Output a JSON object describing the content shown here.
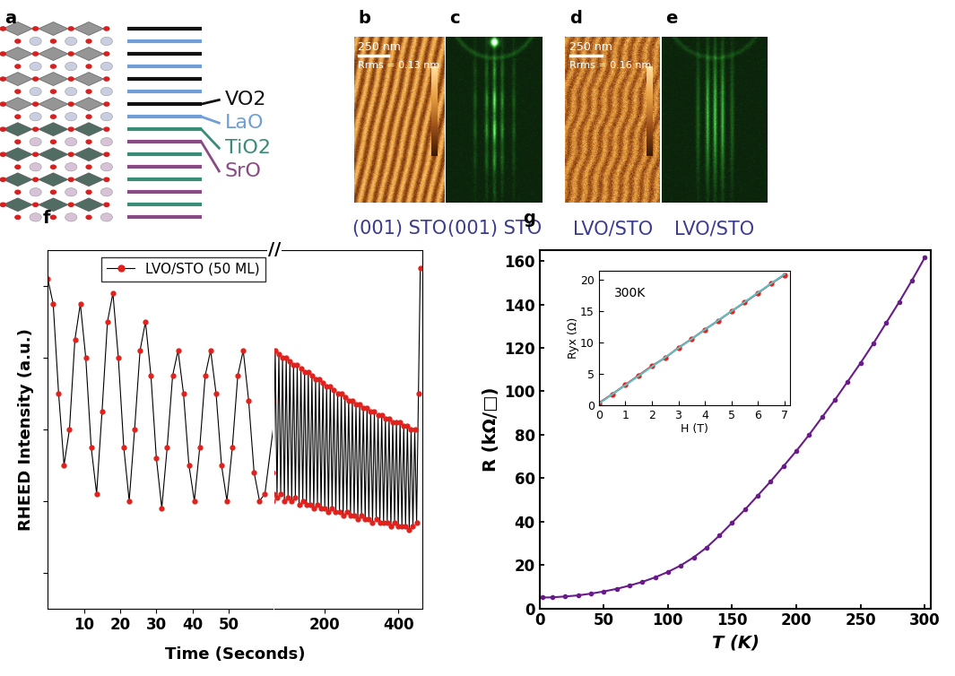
{
  "diagram": {
    "panels": [
      {
        "label": "a",
        "layers": [
          {
            "name": "VO2",
            "color": "#111111"
          },
          {
            "name": "LaO",
            "color": "#6f9fd6"
          },
          {
            "name": "TiO2",
            "color": "#3a8c78"
          },
          {
            "name": "SrO",
            "color": "#8a4a84"
          }
        ]
      },
      {
        "label": "b",
        "type": "afm",
        "scale_bar": "250 nm",
        "roughness": "Rrms = 0.13 nm",
        "caption": "(001) STO"
      },
      {
        "label": "c",
        "type": "rheed",
        "caption": "(001) STO"
      },
      {
        "label": "d",
        "type": "afm",
        "scale_bar": "250 nm",
        "roughness": "Rrms = 0.16 nm",
        "caption": "LVO/STO"
      },
      {
        "label": "e",
        "type": "rheed",
        "caption": "LVO/STO"
      }
    ]
  },
  "chart_data": [
    {
      "label": "f",
      "type": "line",
      "xlabel": "Time (Seconds)",
      "ylabel": "RHEED Intensity (a.u.)",
      "break_label": "//",
      "legend": "upper right",
      "tick_labels": "x",
      "ylim": [
        0,
        1
      ],
      "yticks": [
        0.1,
        0.3,
        0.5,
        0.7,
        0.9
      ],
      "axes": [
        {
          "xlim": [
            0,
            62
          ],
          "xticks": [
            10,
            20,
            30,
            40,
            50
          ]
        },
        {
          "xlim": [
            62,
            465
          ],
          "xticks": [
            200,
            400
          ]
        }
      ],
      "series": [
        {
          "name": "LVO/STO (50 ML)",
          "color": "#e3201b",
          "marker": "o",
          "line_style": "solid",
          "x": [
            0,
            1.5,
            3,
            4.5,
            6,
            7.5,
            9,
            10.5,
            12,
            13.5,
            15,
            16.5,
            18,
            19.5,
            21,
            22.5,
            24,
            25.5,
            27,
            28.5,
            30,
            31.5,
            33,
            34.5,
            36,
            37.5,
            39,
            40.5,
            42,
            43.5,
            45,
            46.5,
            48,
            49.5,
            51,
            52.5,
            54,
            55.5,
            57,
            58.5,
            60,
            65,
            70,
            75,
            80,
            85,
            90,
            95,
            100,
            105,
            110,
            115,
            120,
            125,
            130,
            135,
            140,
            145,
            150,
            155,
            160,
            165,
            170,
            175,
            180,
            185,
            190,
            195,
            200,
            205,
            210,
            215,
            220,
            225,
            230,
            235,
            240,
            245,
            250,
            255,
            260,
            265,
            270,
            275,
            280,
            285,
            290,
            295,
            300,
            305,
            310,
            315,
            320,
            325,
            330,
            335,
            340,
            345,
            350,
            355,
            360,
            365,
            370,
            375,
            380,
            385,
            390,
            395,
            400,
            405,
            410,
            415,
            420,
            425,
            430,
            435,
            440,
            445,
            450,
            455,
            460
          ],
          "values": [
            0.92,
            0.85,
            0.6,
            0.4,
            0.5,
            0.75,
            0.85,
            0.7,
            0.45,
            0.32,
            0.55,
            0.8,
            0.88,
            0.7,
            0.45,
            0.3,
            0.5,
            0.72,
            0.8,
            0.65,
            0.42,
            0.28,
            0.45,
            0.65,
            0.72,
            0.6,
            0.4,
            0.3,
            0.45,
            0.65,
            0.72,
            0.6,
            0.4,
            0.3,
            0.45,
            0.65,
            0.72,
            0.58,
            0.38,
            0.3,
            0.32,
            0.72,
            0.31,
            0.71,
            0.32,
            0.7,
            0.3,
            0.7,
            0.31,
            0.69,
            0.3,
            0.68,
            0.31,
            0.68,
            0.29,
            0.67,
            0.3,
            0.66,
            0.29,
            0.66,
            0.29,
            0.65,
            0.28,
            0.64,
            0.29,
            0.64,
            0.28,
            0.63,
            0.28,
            0.62,
            0.27,
            0.62,
            0.28,
            0.61,
            0.27,
            0.6,
            0.27,
            0.6,
            0.26,
            0.59,
            0.27,
            0.58,
            0.26,
            0.58,
            0.26,
            0.57,
            0.25,
            0.57,
            0.26,
            0.56,
            0.25,
            0.56,
            0.25,
            0.55,
            0.24,
            0.55,
            0.25,
            0.54,
            0.24,
            0.54,
            0.24,
            0.53,
            0.24,
            0.53,
            0.23,
            0.52,
            0.24,
            0.52,
            0.23,
            0.52,
            0.23,
            0.51,
            0.23,
            0.51,
            0.22,
            0.5,
            0.23,
            0.5,
            0.24,
            0.6,
            0.95
          ]
        }
      ]
    },
    {
      "label": "g",
      "type": "line",
      "xlabel": "T (K)",
      "ylabel": "R (kΩ/□)",
      "xlim": [
        0,
        305
      ],
      "xticks": [
        0,
        50,
        100,
        150,
        200,
        250,
        300
      ],
      "ylim": [
        0,
        165
      ],
      "yticks": [
        0,
        20,
        40,
        60,
        80,
        100,
        120,
        140,
        160
      ],
      "series": [
        {
          "color": "#6a1b8a",
          "marker": "o",
          "line_style": "solid",
          "x": [
            2,
            10,
            20,
            30,
            40,
            50,
            60,
            70,
            80,
            90,
            100,
            110,
            120,
            130,
            140,
            150,
            160,
            170,
            180,
            190,
            200,
            210,
            220,
            230,
            240,
            250,
            260,
            270,
            280,
            290,
            300
          ],
          "values": [
            5.0,
            5.1,
            5.5,
            6.0,
            6.8,
            7.8,
            9.0,
            10.5,
            12.2,
            14.3,
            16.8,
            19.8,
            23.5,
            28,
            33.5,
            39.5,
            45.5,
            52,
            58.5,
            65.5,
            72.5,
            80,
            88,
            96,
            104.5,
            113,
            122,
            131.5,
            141,
            151,
            161.5
          ]
        }
      ]
    },
    {
      "type": "line",
      "annotation": "300K",
      "xlabel": "H (T)",
      "ylabel": "Ryx (Ω)",
      "xlim": [
        0,
        7.2
      ],
      "xticks": [
        0,
        1,
        2,
        3,
        4,
        5,
        6,
        7
      ],
      "ylim": [
        0,
        21.5
      ],
      "yticks": [
        0,
        5,
        10,
        15,
        20
      ],
      "series": [
        {
          "color": "#e3201b",
          "marker": "o",
          "line_style": "solid",
          "x": [
            0,
            0.5,
            1,
            1.5,
            2,
            2.5,
            3,
            3.5,
            4,
            4.5,
            5,
            5.5,
            6,
            6.5,
            7
          ],
          "values": [
            0.4,
            1.8,
            3.3,
            4.8,
            6.3,
            7.6,
            9.2,
            10.6,
            12.1,
            13.5,
            15.0,
            16.4,
            17.9,
            19.4,
            20.8
          ]
        },
        {
          "color": "#5bc0c8",
          "marker": "none",
          "line_style": "solid",
          "x": [
            0,
            7
          ],
          "values": [
            0.3,
            20.9
          ]
        }
      ]
    }
  ]
}
